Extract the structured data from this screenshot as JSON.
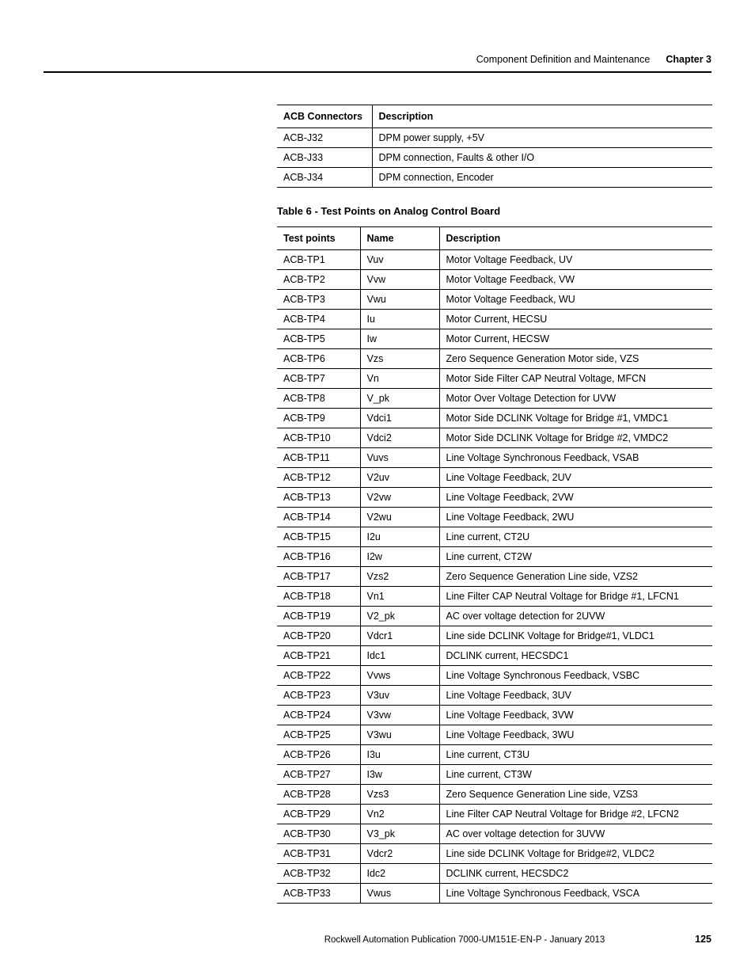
{
  "header": {
    "section": "Component Definition and Maintenance",
    "chapter": "Chapter 3"
  },
  "tables": {
    "t1": {
      "headers": [
        "ACB Connectors",
        "Description"
      ],
      "rows": [
        [
          "ACB-J32",
          "DPM power supply, +5V"
        ],
        [
          "ACB-J33",
          "DPM connection, Faults & other I/O"
        ],
        [
          "ACB-J34",
          "DPM connection, Encoder"
        ]
      ]
    },
    "t2": {
      "caption": "Table 6 - Test Points on Analog Control Board",
      "headers": [
        "Test points",
        "Name",
        "Description"
      ],
      "rows": [
        [
          "ACB-TP1",
          "Vuv",
          "Motor Voltage Feedback, UV"
        ],
        [
          "ACB-TP2",
          "Vvw",
          "Motor Voltage Feedback, VW"
        ],
        [
          "ACB-TP3",
          "Vwu",
          "Motor Voltage Feedback, WU"
        ],
        [
          "ACB-TP4",
          "Iu",
          "Motor Current, HECSU"
        ],
        [
          "ACB-TP5",
          "Iw",
          "Motor Current, HECSW"
        ],
        [
          "ACB-TP6",
          "Vzs",
          "Zero Sequence Generation Motor side, VZS"
        ],
        [
          "ACB-TP7",
          "Vn",
          "Motor Side Filter CAP Neutral Voltage, MFCN"
        ],
        [
          "ACB-TP8",
          "V_pk",
          "Motor Over Voltage Detection for UVW"
        ],
        [
          "ACB-TP9",
          "Vdci1",
          "Motor Side DCLINK Voltage for Bridge #1, VMDC1"
        ],
        [
          "ACB-TP10",
          "Vdci2",
          "Motor Side DCLINK Voltage for Bridge #2, VMDC2"
        ],
        [
          "ACB-TP11",
          "Vuvs",
          "Line Voltage Synchronous Feedback, VSAB"
        ],
        [
          "ACB-TP12",
          "V2uv",
          "Line Voltage Feedback, 2UV"
        ],
        [
          "ACB-TP13",
          "V2vw",
          "Line Voltage Feedback, 2VW"
        ],
        [
          "ACB-TP14",
          "V2wu",
          "Line Voltage Feedback, 2WU"
        ],
        [
          "ACB-TP15",
          "I2u",
          "Line current, CT2U"
        ],
        [
          "ACB-TP16",
          "I2w",
          "Line current, CT2W"
        ],
        [
          "ACB-TP17",
          "Vzs2",
          "Zero Sequence Generation Line side, VZS2"
        ],
        [
          "ACB-TP18",
          "Vn1",
          "Line Filter CAP Neutral Voltage for Bridge #1, LFCN1"
        ],
        [
          "ACB-TP19",
          "V2_pk",
          "AC over voltage detection for 2UVW"
        ],
        [
          "ACB-TP20",
          "Vdcr1",
          "Line side DCLINK Voltage for Bridge#1, VLDC1"
        ],
        [
          "ACB-TP21",
          "Idc1",
          "DCLINK current, HECSDC1"
        ],
        [
          "ACB-TP22",
          "Vvws",
          "Line Voltage Synchronous Feedback, VSBC"
        ],
        [
          "ACB-TP23",
          "V3uv",
          "Line Voltage Feedback, 3UV"
        ],
        [
          "ACB-TP24",
          "V3vw",
          "Line Voltage Feedback, 3VW"
        ],
        [
          "ACB-TP25",
          "V3wu",
          "Line Voltage Feedback, 3WU"
        ],
        [
          "ACB-TP26",
          "I3u",
          "Line current, CT3U"
        ],
        [
          "ACB-TP27",
          "I3w",
          "Line current, CT3W"
        ],
        [
          "ACB-TP28",
          "Vzs3",
          "Zero Sequence Generation Line side, VZS3"
        ],
        [
          "ACB-TP29",
          "Vn2",
          "Line Filter CAP Neutral Voltage for Bridge #2, LFCN2"
        ],
        [
          "ACB-TP30",
          "V3_pk",
          "AC over voltage detection for 3UVW"
        ],
        [
          "ACB-TP31",
          "Vdcr2",
          "Line side DCLINK Voltage for Bridge#2, VLDC2"
        ],
        [
          "ACB-TP32",
          "Idc2",
          "DCLINK current, HECSDC2"
        ],
        [
          "ACB-TP33",
          "Vwus",
          "Line Voltage Synchronous Feedback, VSCA"
        ]
      ]
    }
  },
  "footer": {
    "publication": "Rockwell Automation Publication 7000-UM151E-EN-P - January 2013",
    "page": "125"
  }
}
